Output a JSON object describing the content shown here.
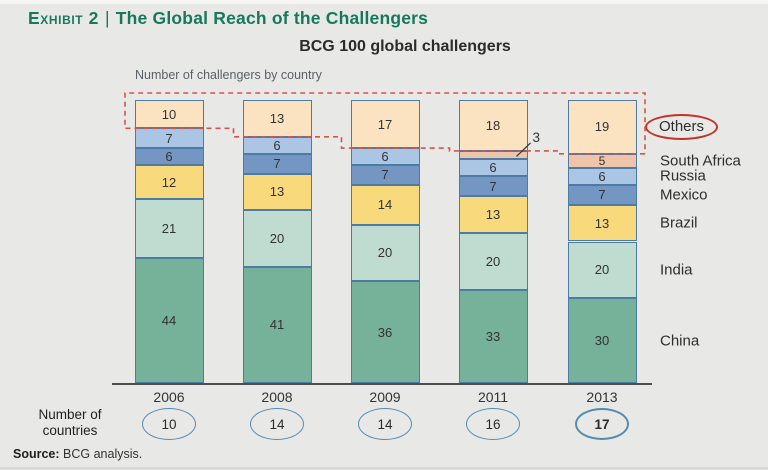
{
  "window": {
    "background": "#e8e8e7"
  },
  "header": {
    "exhibit_label": "Exhibit 2",
    "separator": "|",
    "title": "The Global Reach of the Challengers",
    "accent_color": "#17795c"
  },
  "chart_data": {
    "type": "bar",
    "subtype": "stacked-vertical",
    "title": "BCG 100 global challengers",
    "annotation_label": "Number of challengers by country",
    "categories": [
      "2006",
      "2008",
      "2009",
      "2011",
      "2013"
    ],
    "series": [
      {
        "name": "Others",
        "color": "#fbe3c2",
        "values": [
          10,
          13,
          17,
          18,
          19
        ],
        "legend_circled": true
      },
      {
        "name": "South Africa",
        "color": "#eec4aa",
        "values": [
          0,
          0,
          0,
          3,
          5
        ]
      },
      {
        "name": "Russia",
        "color": "#abc6e4",
        "values": [
          7,
          6,
          6,
          6,
          6
        ]
      },
      {
        "name": "Mexico",
        "color": "#7496c3",
        "values": [
          6,
          7,
          7,
          7,
          7
        ]
      },
      {
        "name": "Brazil",
        "color": "#f8d97c",
        "values": [
          12,
          13,
          14,
          13,
          13
        ]
      },
      {
        "name": "India",
        "color": "#c0dcd0",
        "values": [
          21,
          20,
          20,
          20,
          20
        ]
      },
      {
        "name": "China",
        "color": "#76b199",
        "values": [
          44,
          41,
          36,
          33,
          30
        ]
      }
    ],
    "segment_border_color": "#4c7ca3",
    "external_label": {
      "series": "South Africa",
      "category": "2011",
      "text": "3"
    },
    "highlight": {
      "series": "Others",
      "dash_color": "#d4544a",
      "legend_ellipse_color": "#bf3427"
    },
    "ylim": [
      0,
      100
    ],
    "grid": false,
    "legend_position": "right"
  },
  "countries_row": {
    "label_line1": "Number of",
    "label_line2": "countries",
    "values": [
      "10",
      "14",
      "14",
      "16",
      "17"
    ],
    "bold_index": 4,
    "oval_color": "#548cb0"
  },
  "source": {
    "label": "Source:",
    "text": "BCG analysis."
  }
}
